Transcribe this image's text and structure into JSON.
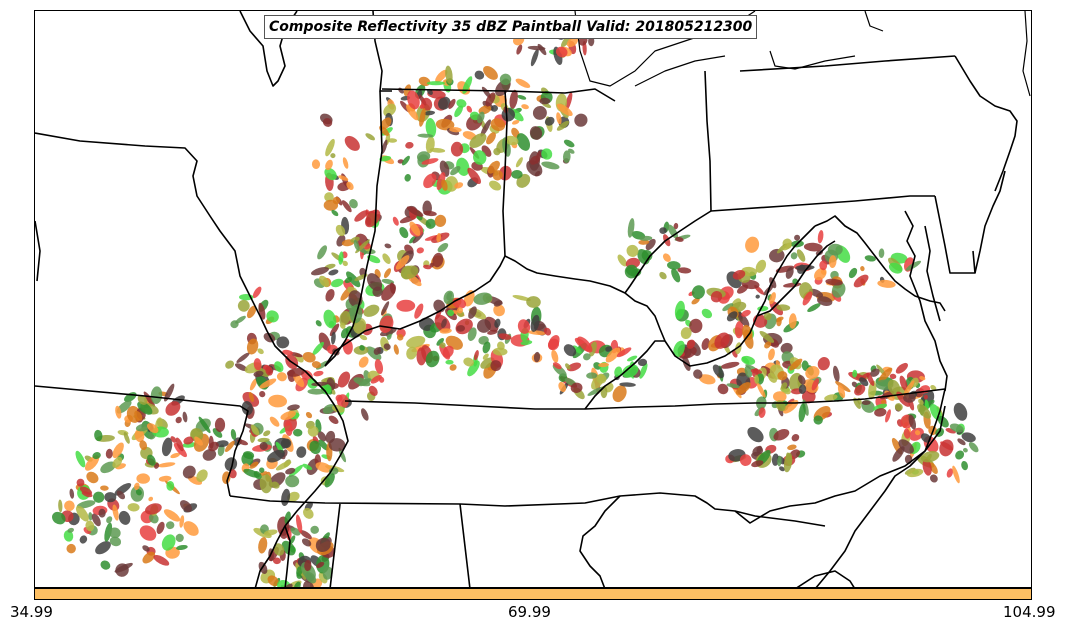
{
  "map": {
    "title": "Composite Reflectivity 35 dBZ Paintball Valid: 201805212300",
    "colorbar_color": "#fdbf63",
    "colorbar_ticks": [
      "34.99",
      "69.99",
      "104.99"
    ],
    "member_colors": [
      "#5d9a52",
      "#ff9a3c",
      "#e83f3f",
      "#8a2f2f",
      "#9aa43a",
      "#44dd44",
      "#3f3f3f",
      "#d97a1a",
      "#c83232",
      "#6b3a3a",
      "#b3b845",
      "#2f8f2f"
    ],
    "background": "#ffffff",
    "boundary_color": "#000000"
  }
}
